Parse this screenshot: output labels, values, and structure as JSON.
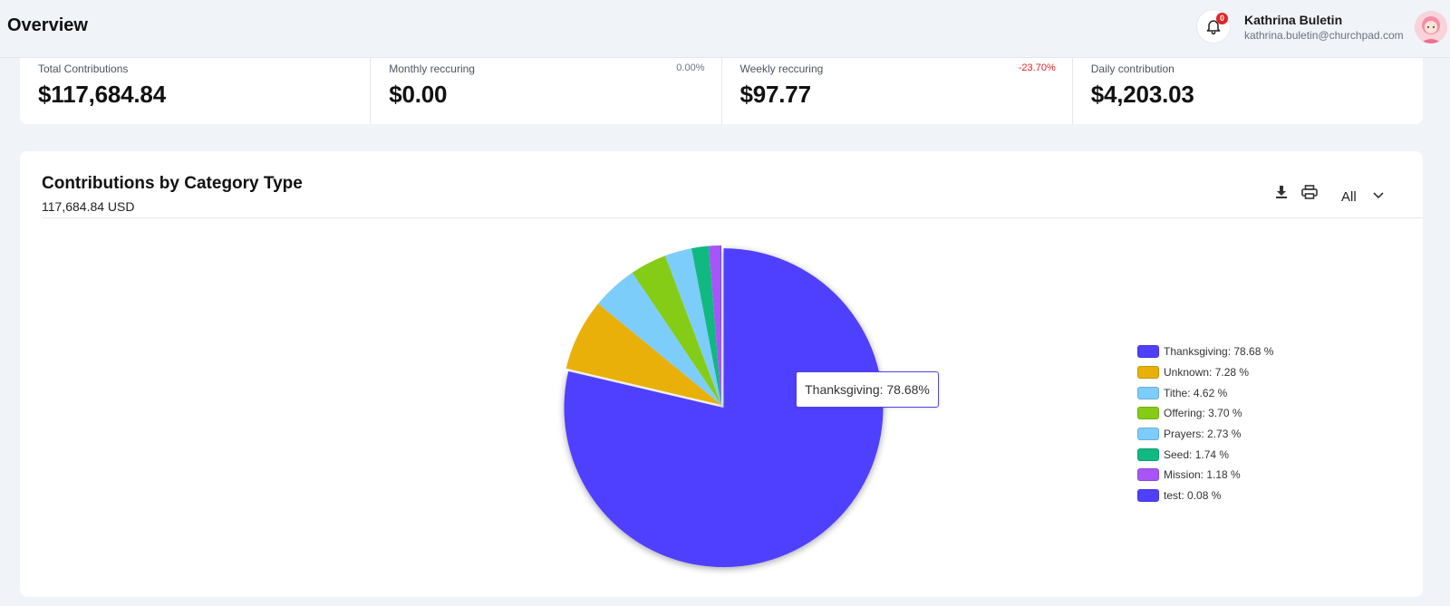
{
  "header": {
    "title": "Overview",
    "notification_count": "0",
    "user_name": "Kathrina Buletin",
    "user_email": "kathrina.buletin@churchpad.com"
  },
  "stats": [
    {
      "label": "Total Contributions",
      "value": "$117,684.84",
      "pct": ""
    },
    {
      "label": "Monthly reccuring",
      "value": "$0.00",
      "pct": "0.00%"
    },
    {
      "label": "Weekly reccuring",
      "value": "$97.77",
      "pct": "-23.70%"
    },
    {
      "label": "Daily contribution",
      "value": "$4,203.03",
      "pct": ""
    }
  ],
  "card": {
    "title": "Contributions by Category Type",
    "subtitle": "117,684.84 USD",
    "filter_value": "All",
    "tooltip": "Thanksgiving: 78.68%"
  },
  "chart_data": {
    "type": "pie",
    "categories": [
      "Thanksgiving",
      "Unknown",
      "Tithe",
      "Offering",
      "Prayers",
      "Seed",
      "Mission",
      "test"
    ],
    "values": [
      78.68,
      7.28,
      4.62,
      3.7,
      2.73,
      1.74,
      1.18,
      0.08
    ],
    "legend_labels": [
      "Thanksgiving: 78.68 %",
      "Unknown: 7.28 %",
      "Tithe: 4.62 %",
      "Offering: 3.70 %",
      "Prayers: 2.73 %",
      "Seed: 1.74 %",
      "Mission: 1.18 %",
      "test: 0.08 %"
    ],
    "colors": [
      "#4f3fff",
      "#e8b008",
      "#7dcdfb",
      "#84cc16",
      "#7dcdfb",
      "#10b981",
      "#a855f7",
      "#4f3fff"
    ],
    "exploded": "Thanksgiving",
    "legend_position": "right"
  }
}
